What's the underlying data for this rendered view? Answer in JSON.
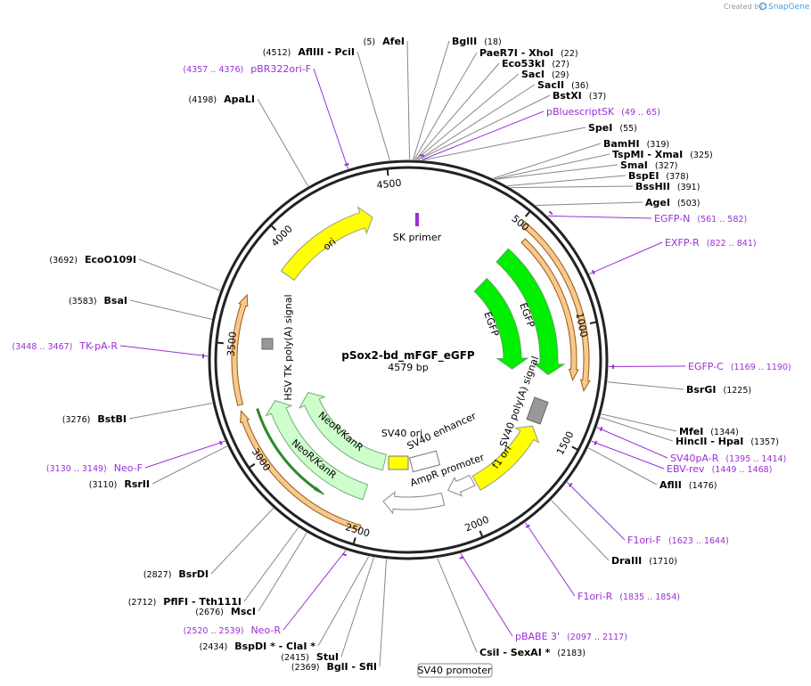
{
  "header": {
    "credit": "Created by",
    "brand": "SnapGene"
  },
  "plasmid": {
    "name": "pSox2-bd_mFGF_eGFP",
    "length": "4579 bp"
  },
  "ruler": [
    500,
    1000,
    1500,
    2000,
    2500,
    3000,
    3500,
    4000,
    4500
  ],
  "sites": [
    {
      "name": "AfeI",
      "position": "(5)"
    },
    {
      "name": "BglII",
      "position": "(18)"
    },
    {
      "name": "PaeR7I  -  XhoI",
      "position": "(22)"
    },
    {
      "name": "Eco53kI",
      "position": "(27)"
    },
    {
      "name": "SacI",
      "position": "(29)"
    },
    {
      "name": "SacII",
      "position": "(36)"
    },
    {
      "name": "BstXI",
      "position": "(37)"
    },
    {
      "name": "SpeI",
      "position": "(55)"
    },
    {
      "name": "BamHI",
      "position": "(319)"
    },
    {
      "name": "TspMI  -  XmaI",
      "position": "(325)"
    },
    {
      "name": "SmaI",
      "position": "(327)"
    },
    {
      "name": "BspEI",
      "position": "(378)"
    },
    {
      "name": "BssHII",
      "position": "(391)"
    },
    {
      "name": "AgeI",
      "position": "(503)"
    },
    {
      "name": "BsrGI",
      "position": "(1225)"
    },
    {
      "name": "MfeI",
      "position": "(1344)"
    },
    {
      "name": "HincII  -  HpaI",
      "position": "(1357)"
    },
    {
      "name": "AflII",
      "position": "(1476)"
    },
    {
      "name": "DraIII",
      "position": "(1710)"
    },
    {
      "name": "CsiI  -  SexAI *",
      "position": "(2183)"
    },
    {
      "name": "StuI",
      "position": "(2415)"
    },
    {
      "name": "BglI  -  SfiI",
      "position": "(2369)"
    },
    {
      "name": "BspDI *  -  ClaI *",
      "position": "(2434)"
    },
    {
      "name": "MscI",
      "position": "(2676)"
    },
    {
      "name": "PflFI  -  Tth111I",
      "position": "(2712)"
    },
    {
      "name": "BsrDI",
      "position": "(2827)"
    },
    {
      "name": "RsrII",
      "position": "(3110)"
    },
    {
      "name": "BstBI",
      "position": "(3276)"
    },
    {
      "name": "BsaI",
      "position": "(3583)"
    },
    {
      "name": "EcoO109I",
      "position": "(3692)"
    },
    {
      "name": "ApaLI",
      "position": "(4198)"
    },
    {
      "name": "AflIII  -  PciI",
      "position": "(4512)"
    }
  ],
  "primers": [
    {
      "name": "pBR322ori-F",
      "range": "(4357 .. 4376)"
    },
    {
      "name": "pBluescriptSK",
      "range": "(49 .. 65)"
    },
    {
      "name": "EGFP-N",
      "range": "(561 .. 582)"
    },
    {
      "name": "EXFP-R",
      "range": "(822 .. 841)"
    },
    {
      "name": "EGFP-C",
      "range": "(1169 .. 1190)"
    },
    {
      "name": "SV40pA-R",
      "range": "(1395 .. 1414)"
    },
    {
      "name": "EBV-rev",
      "range": "(1449 .. 1468)"
    },
    {
      "name": "F1ori-F",
      "range": "(1623 .. 1644)"
    },
    {
      "name": "F1ori-R",
      "range": "(1835 .. 1854)"
    },
    {
      "name": "pBABE 3'",
      "range": "(2097 .. 2117)"
    },
    {
      "name": "Neo-R",
      "range": "(2520 .. 2539)"
    },
    {
      "name": "Neo-F",
      "range": "(3130 .. 3149)"
    },
    {
      "name": "TK-pA-R",
      "range": "(3448 .. 3467)"
    }
  ],
  "features": [
    "ori",
    "EGFP",
    "EGFP",
    "f1 ori",
    "NeoR/KanR",
    "NeoR/KanR",
    "SV40 ori",
    "SV40 enhancer",
    "AmpR promoter",
    "SK primer",
    "HSV TK poly(A) signal",
    "SV40 poly(A) signal"
  ],
  "button": "SV40 promoter"
}
